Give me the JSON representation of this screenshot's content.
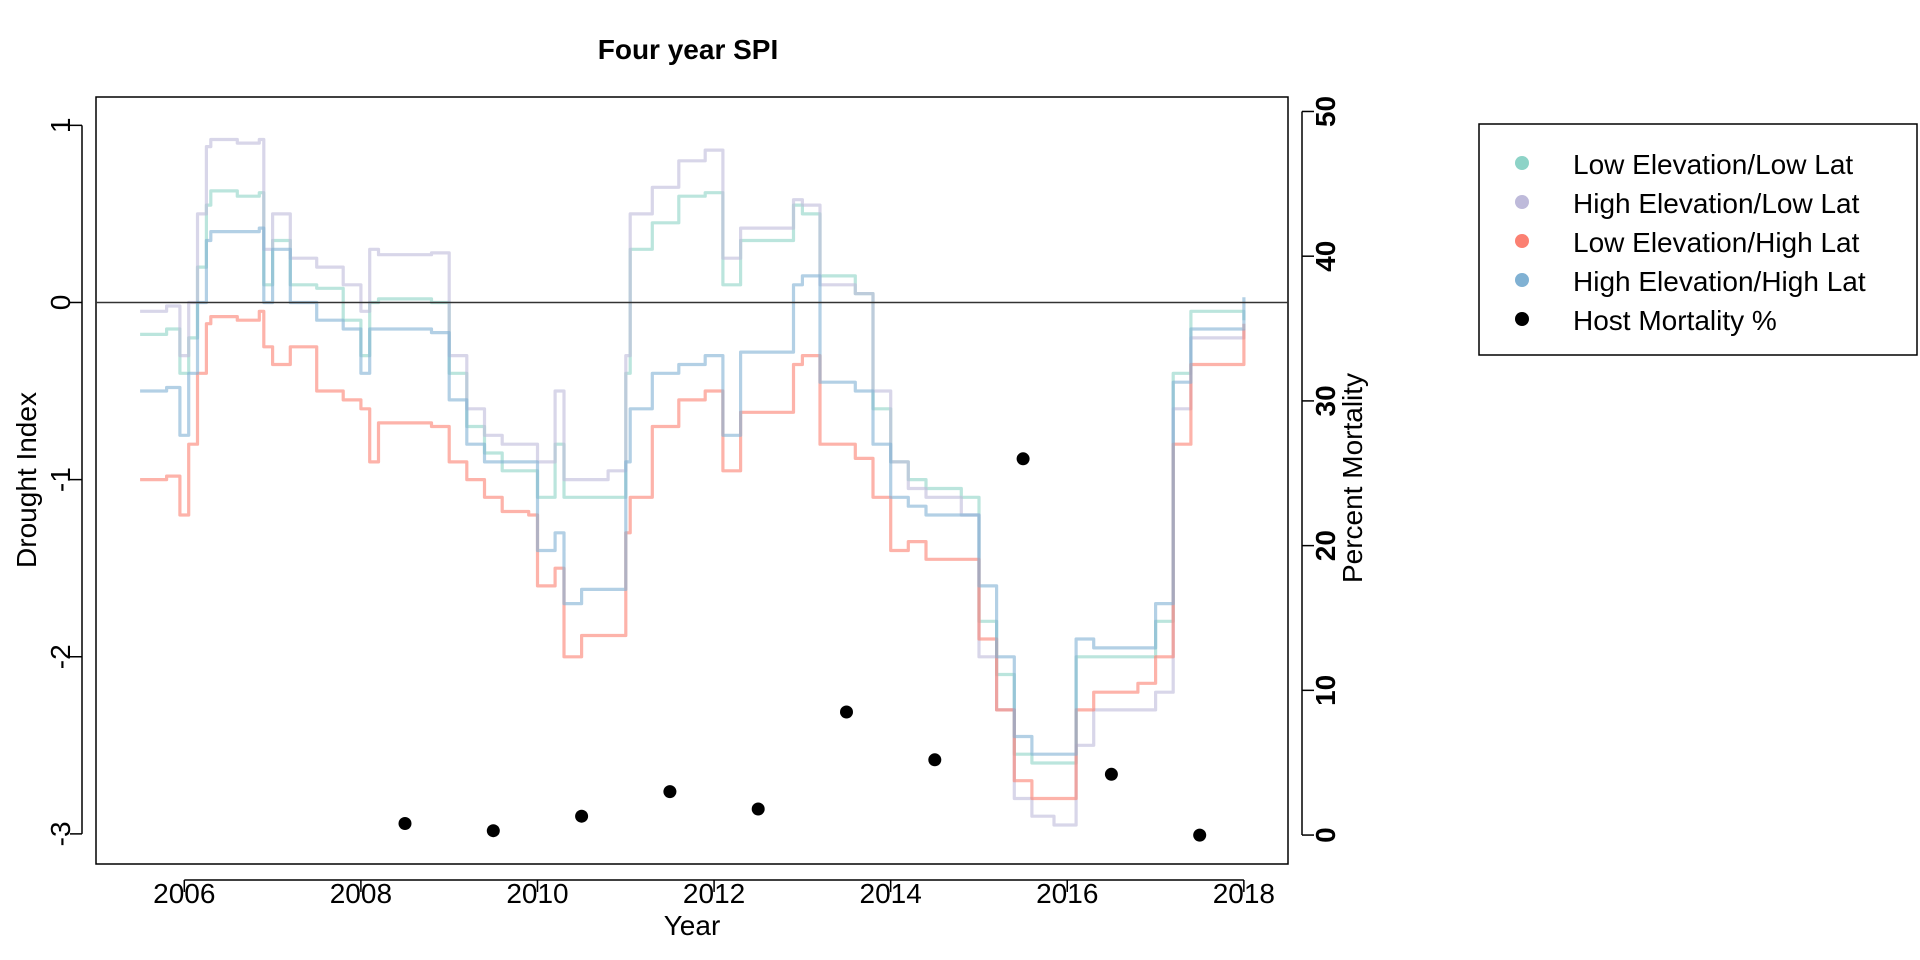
{
  "chart_data": {
    "type": "line",
    "title": "Four year SPI",
    "xlabel": "Year",
    "ylabel": "Drought Index",
    "y2label": "Percent Mortality",
    "xlim": [
      2005.0,
      2018.5
    ],
    "ylim": [
      -3.17,
      1.16
    ],
    "y2lim": [
      -2,
      51
    ],
    "x_ticks": [
      2006,
      2008,
      2010,
      2012,
      2014,
      2016,
      2018
    ],
    "y_ticks": [
      1,
      0,
      -1,
      -2,
      -3
    ],
    "y2_ticks": [
      0,
      10,
      20,
      30,
      40,
      50
    ],
    "reference_line_y": 0,
    "legend_position": "outside-right-top",
    "series": [
      {
        "name": "Low Elevation/Low Lat",
        "color": "#8DD3C7",
        "points": [
          [
            2005.5,
            -0.18
          ],
          [
            2005.8,
            -0.15
          ],
          [
            2005.95,
            -0.4
          ],
          [
            2006.05,
            -0.2
          ],
          [
            2006.15,
            0.2
          ],
          [
            2006.25,
            0.55
          ],
          [
            2006.3,
            0.63
          ],
          [
            2006.6,
            0.6
          ],
          [
            2006.85,
            0.62
          ],
          [
            2006.9,
            0.1
          ],
          [
            2007.0,
            0.35
          ],
          [
            2007.2,
            0.1
          ],
          [
            2007.5,
            0.08
          ],
          [
            2007.8,
            -0.1
          ],
          [
            2008.0,
            -0.3
          ],
          [
            2008.1,
            0.0
          ],
          [
            2008.2,
            0.02
          ],
          [
            2008.5,
            0.02
          ],
          [
            2008.8,
            0.0
          ],
          [
            2009.0,
            -0.4
          ],
          [
            2009.2,
            -0.7
          ],
          [
            2009.4,
            -0.85
          ],
          [
            2009.6,
            -0.95
          ],
          [
            2009.9,
            -0.95
          ],
          [
            2010.0,
            -1.1
          ],
          [
            2010.2,
            -0.8
          ],
          [
            2010.3,
            -1.1
          ],
          [
            2010.8,
            -1.1
          ],
          [
            2011.0,
            -0.4
          ],
          [
            2011.05,
            0.3
          ],
          [
            2011.3,
            0.45
          ],
          [
            2011.6,
            0.6
          ],
          [
            2011.9,
            0.62
          ],
          [
            2012.1,
            0.1
          ],
          [
            2012.3,
            0.35
          ],
          [
            2012.8,
            0.35
          ],
          [
            2012.9,
            0.55
          ],
          [
            2013.0,
            0.5
          ],
          [
            2013.2,
            0.15
          ],
          [
            2013.6,
            0.05
          ],
          [
            2013.8,
            -0.6
          ],
          [
            2014.0,
            -0.9
          ],
          [
            2014.2,
            -1.0
          ],
          [
            2014.4,
            -1.05
          ],
          [
            2014.8,
            -1.1
          ],
          [
            2015.0,
            -1.8
          ],
          [
            2015.2,
            -2.1
          ],
          [
            2015.4,
            -2.55
          ],
          [
            2015.6,
            -2.6
          ],
          [
            2015.9,
            -2.6
          ],
          [
            2016.1,
            -2.0
          ],
          [
            2016.3,
            -2.0
          ],
          [
            2016.8,
            -2.0
          ],
          [
            2017.0,
            -1.8
          ],
          [
            2017.2,
            -0.4
          ],
          [
            2017.4,
            -0.05
          ],
          [
            2017.7,
            -0.05
          ],
          [
            2018.0,
            -0.1
          ]
        ]
      },
      {
        "name": "High Elevation/Low Lat",
        "color": "#BEBADA",
        "points": [
          [
            2005.5,
            -0.05
          ],
          [
            2005.8,
            -0.02
          ],
          [
            2005.95,
            -0.3
          ],
          [
            2006.05,
            0.0
          ],
          [
            2006.15,
            0.5
          ],
          [
            2006.25,
            0.88
          ],
          [
            2006.3,
            0.92
          ],
          [
            2006.6,
            0.9
          ],
          [
            2006.85,
            0.92
          ],
          [
            2006.9,
            0.3
          ],
          [
            2007.0,
            0.5
          ],
          [
            2007.2,
            0.25
          ],
          [
            2007.5,
            0.2
          ],
          [
            2007.8,
            0.1
          ],
          [
            2008.0,
            -0.05
          ],
          [
            2008.1,
            0.3
          ],
          [
            2008.2,
            0.27
          ],
          [
            2008.5,
            0.27
          ],
          [
            2008.8,
            0.28
          ],
          [
            2009.0,
            -0.3
          ],
          [
            2009.2,
            -0.6
          ],
          [
            2009.4,
            -0.75
          ],
          [
            2009.6,
            -0.8
          ],
          [
            2009.9,
            -0.8
          ],
          [
            2010.0,
            -0.9
          ],
          [
            2010.2,
            -0.5
          ],
          [
            2010.3,
            -1.0
          ],
          [
            2010.8,
            -0.95
          ],
          [
            2011.0,
            -0.3
          ],
          [
            2011.05,
            0.5
          ],
          [
            2011.3,
            0.65
          ],
          [
            2011.6,
            0.8
          ],
          [
            2011.9,
            0.86
          ],
          [
            2012.1,
            0.25
          ],
          [
            2012.3,
            0.42
          ],
          [
            2012.8,
            0.42
          ],
          [
            2012.9,
            0.58
          ],
          [
            2013.0,
            0.55
          ],
          [
            2013.2,
            0.1
          ],
          [
            2013.6,
            0.05
          ],
          [
            2013.8,
            -0.5
          ],
          [
            2014.0,
            -0.9
          ],
          [
            2014.2,
            -1.05
          ],
          [
            2014.4,
            -1.1
          ],
          [
            2014.8,
            -1.2
          ],
          [
            2015.0,
            -2.0
          ],
          [
            2015.2,
            -2.3
          ],
          [
            2015.4,
            -2.8
          ],
          [
            2015.6,
            -2.9
          ],
          [
            2015.85,
            -2.95
          ],
          [
            2016.1,
            -2.5
          ],
          [
            2016.3,
            -2.3
          ],
          [
            2016.8,
            -2.3
          ],
          [
            2017.0,
            -2.2
          ],
          [
            2017.2,
            -0.6
          ],
          [
            2017.4,
            -0.2
          ],
          [
            2017.7,
            -0.2
          ],
          [
            2018.0,
            -0.15
          ]
        ]
      },
      {
        "name": "Low Elevation/High Lat",
        "color": "#FB8072",
        "points": [
          [
            2005.5,
            -1.0
          ],
          [
            2005.8,
            -0.98
          ],
          [
            2005.95,
            -1.2
          ],
          [
            2006.05,
            -0.8
          ],
          [
            2006.15,
            -0.4
          ],
          [
            2006.25,
            -0.12
          ],
          [
            2006.3,
            -0.08
          ],
          [
            2006.6,
            -0.1
          ],
          [
            2006.85,
            -0.05
          ],
          [
            2006.9,
            -0.25
          ],
          [
            2007.0,
            -0.35
          ],
          [
            2007.2,
            -0.25
          ],
          [
            2007.5,
            -0.5
          ],
          [
            2007.8,
            -0.55
          ],
          [
            2008.0,
            -0.6
          ],
          [
            2008.1,
            -0.9
          ],
          [
            2008.2,
            -0.68
          ],
          [
            2008.5,
            -0.68
          ],
          [
            2008.8,
            -0.7
          ],
          [
            2009.0,
            -0.9
          ],
          [
            2009.2,
            -1.0
          ],
          [
            2009.4,
            -1.1
          ],
          [
            2009.6,
            -1.18
          ],
          [
            2009.9,
            -1.2
          ],
          [
            2010.0,
            -1.6
          ],
          [
            2010.2,
            -1.5
          ],
          [
            2010.3,
            -2.0
          ],
          [
            2010.5,
            -1.88
          ],
          [
            2010.8,
            -1.88
          ],
          [
            2011.0,
            -1.3
          ],
          [
            2011.05,
            -1.1
          ],
          [
            2011.3,
            -0.7
          ],
          [
            2011.6,
            -0.55
          ],
          [
            2011.9,
            -0.5
          ],
          [
            2012.1,
            -0.95
          ],
          [
            2012.3,
            -0.62
          ],
          [
            2012.8,
            -0.62
          ],
          [
            2012.9,
            -0.35
          ],
          [
            2013.0,
            -0.3
          ],
          [
            2013.2,
            -0.8
          ],
          [
            2013.6,
            -0.88
          ],
          [
            2013.8,
            -1.1
          ],
          [
            2014.0,
            -1.4
          ],
          [
            2014.2,
            -1.35
          ],
          [
            2014.4,
            -1.45
          ],
          [
            2014.8,
            -1.45
          ],
          [
            2015.0,
            -1.9
          ],
          [
            2015.2,
            -2.3
          ],
          [
            2015.4,
            -2.7
          ],
          [
            2015.6,
            -2.8
          ],
          [
            2015.9,
            -2.8
          ],
          [
            2016.1,
            -2.3
          ],
          [
            2016.3,
            -2.2
          ],
          [
            2016.8,
            -2.15
          ],
          [
            2017.0,
            -2.0
          ],
          [
            2017.2,
            -0.8
          ],
          [
            2017.4,
            -0.35
          ],
          [
            2017.7,
            -0.35
          ],
          [
            2018.0,
            -0.12
          ]
        ]
      },
      {
        "name": "High Elevation/High Lat",
        "color": "#80B1D3",
        "points": [
          [
            2005.5,
            -0.5
          ],
          [
            2005.8,
            -0.48
          ],
          [
            2005.95,
            -0.75
          ],
          [
            2006.05,
            -0.4
          ],
          [
            2006.15,
            0.0
          ],
          [
            2006.25,
            0.35
          ],
          [
            2006.3,
            0.4
          ],
          [
            2006.6,
            0.4
          ],
          [
            2006.85,
            0.42
          ],
          [
            2006.9,
            0.0
          ],
          [
            2007.0,
            0.3
          ],
          [
            2007.2,
            0.0
          ],
          [
            2007.5,
            -0.1
          ],
          [
            2007.8,
            -0.15
          ],
          [
            2008.0,
            -0.4
          ],
          [
            2008.1,
            -0.15
          ],
          [
            2008.2,
            -0.15
          ],
          [
            2008.5,
            -0.15
          ],
          [
            2008.8,
            -0.17
          ],
          [
            2009.0,
            -0.55
          ],
          [
            2009.2,
            -0.8
          ],
          [
            2009.4,
            -0.9
          ],
          [
            2009.6,
            -0.9
          ],
          [
            2009.9,
            -0.9
          ],
          [
            2010.0,
            -1.4
          ],
          [
            2010.2,
            -1.3
          ],
          [
            2010.3,
            -1.7
          ],
          [
            2010.5,
            -1.62
          ],
          [
            2010.8,
            -1.62
          ],
          [
            2011.0,
            -0.9
          ],
          [
            2011.05,
            -0.6
          ],
          [
            2011.3,
            -0.4
          ],
          [
            2011.6,
            -0.35
          ],
          [
            2011.9,
            -0.3
          ],
          [
            2012.1,
            -0.75
          ],
          [
            2012.3,
            -0.28
          ],
          [
            2012.8,
            -0.28
          ],
          [
            2012.9,
            0.1
          ],
          [
            2013.0,
            0.15
          ],
          [
            2013.2,
            -0.45
          ],
          [
            2013.6,
            -0.5
          ],
          [
            2013.8,
            -0.8
          ],
          [
            2014.0,
            -1.1
          ],
          [
            2014.2,
            -1.15
          ],
          [
            2014.4,
            -1.2
          ],
          [
            2014.8,
            -1.2
          ],
          [
            2015.0,
            -1.6
          ],
          [
            2015.2,
            -2.0
          ],
          [
            2015.4,
            -2.45
          ],
          [
            2015.6,
            -2.55
          ],
          [
            2015.9,
            -2.55
          ],
          [
            2016.1,
            -1.9
          ],
          [
            2016.3,
            -1.95
          ],
          [
            2016.8,
            -1.95
          ],
          [
            2017.0,
            -1.7
          ],
          [
            2017.2,
            -0.45
          ],
          [
            2017.4,
            -0.15
          ],
          [
            2017.7,
            -0.15
          ],
          [
            2018.0,
            0.03
          ]
        ]
      }
    ],
    "mortality": {
      "name": "Host Mortality %",
      "color": "#000000",
      "x": [
        2008.5,
        2009.5,
        2010.5,
        2011.5,
        2012.5,
        2013.5,
        2014.5,
        2015.5,
        2016.5,
        2017.5
      ],
      "y": [
        0.8,
        0.3,
        1.3,
        3.0,
        1.8,
        8.5,
        5.2,
        26.0,
        4.2,
        0.0
      ]
    },
    "legend": [
      "Low Elevation/Low Lat",
      "High Elevation/Low Lat",
      "Low Elevation/High Lat",
      "High Elevation/High Lat",
      "Host Mortality %"
    ]
  }
}
